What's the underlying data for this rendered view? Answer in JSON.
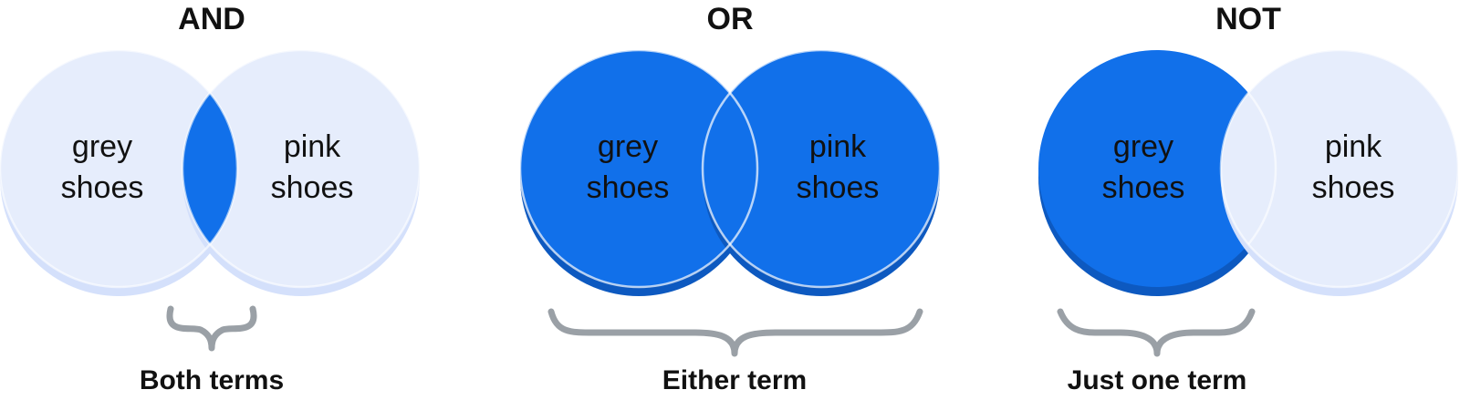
{
  "colors": {
    "light_fill": "#e6edfc",
    "light_shadow": "#d4e0fb",
    "dark_fill": "#1170ea",
    "dark_shadow": "#0d59c0",
    "outline": "#ffffff",
    "brace": "#9aa0a6",
    "text": "#111111"
  },
  "panels": [
    {
      "title": "AND",
      "left_label": [
        "grey",
        "shoes"
      ],
      "right_label": [
        "pink",
        "shoes"
      ],
      "caption": "Both terms",
      "highlight": "intersection"
    },
    {
      "title": "OR",
      "left_label": [
        "grey",
        "shoes"
      ],
      "right_label": [
        "pink",
        "shoes"
      ],
      "caption": "Either term",
      "highlight": "union"
    },
    {
      "title": "NOT",
      "left_label": [
        "grey",
        "shoes"
      ],
      "right_label": [
        "pink",
        "shoes"
      ],
      "caption": "Just one term",
      "highlight": "left-only"
    }
  ]
}
